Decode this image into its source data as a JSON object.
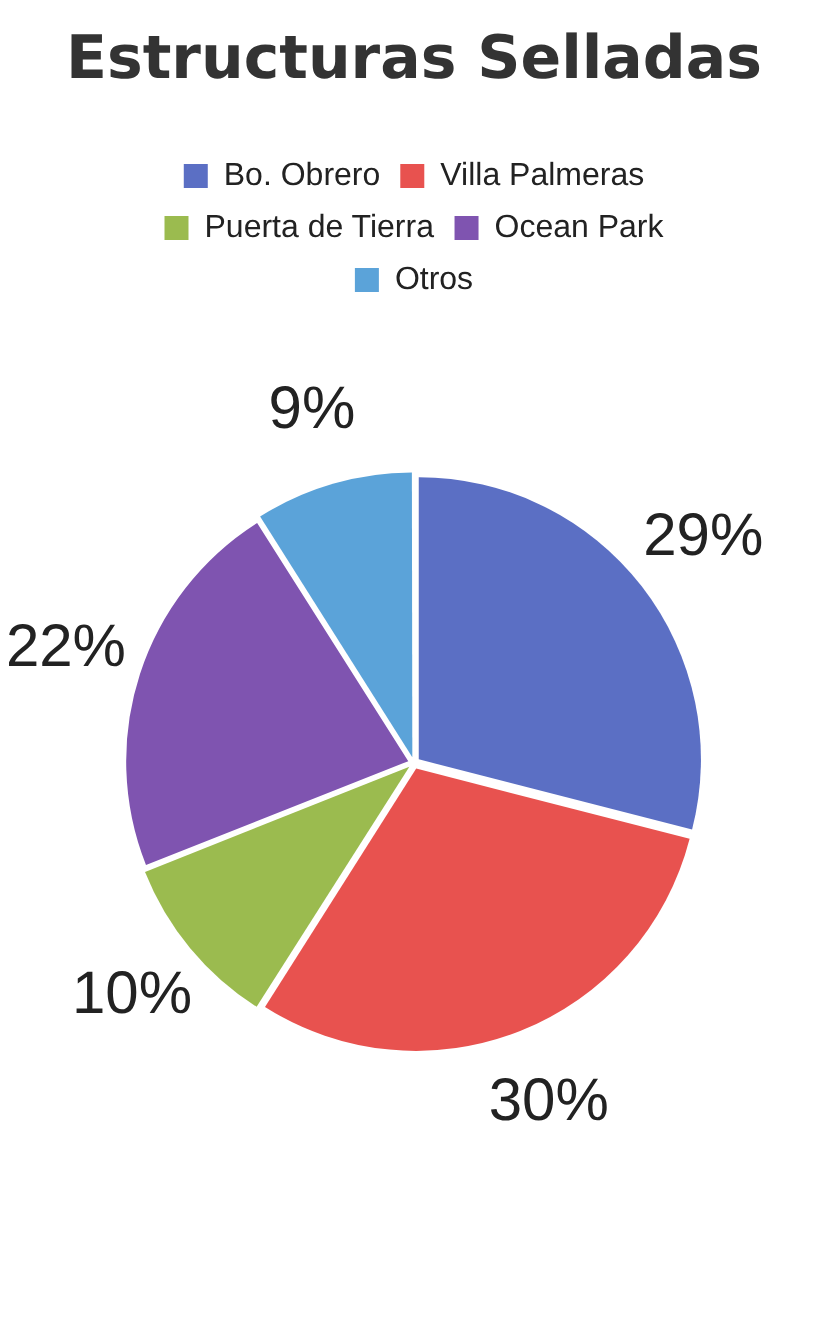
{
  "chart_data": {
    "type": "pie",
    "title": "Estructuras Selladas",
    "categories": [
      "Bo. Obrero",
      "Villa Palmeras",
      "Puerta de Tierra",
      "Ocean Park",
      "Otros"
    ],
    "values": [
      29,
      30,
      10,
      22,
      9
    ],
    "colors": [
      "#5b6fc4",
      "#e8524f",
      "#9bbb4f",
      "#7f54b0",
      "#5ba3d9"
    ],
    "value_labels": [
      "29%",
      "30%",
      "10%",
      "22%",
      "9%"
    ],
    "legend": "top"
  }
}
